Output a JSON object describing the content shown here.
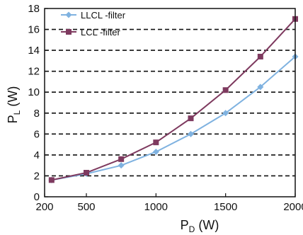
{
  "chart_data": {
    "type": "line",
    "xlabel": "P",
    "xlabel_sub": "D",
    "xlabel_unit": " (W)",
    "ylabel": "P",
    "ylabel_sub": "L",
    "ylabel_unit": " (W)",
    "xlim": [
      200,
      2000
    ],
    "ylim": [
      0,
      18
    ],
    "x_ticks": [
      200,
      500,
      1000,
      1500,
      2000
    ],
    "x_tick_labels": [
      "200",
      "500",
      "1000",
      "1500",
      "2000"
    ],
    "y_ticks": [
      0,
      2,
      4,
      6,
      8,
      10,
      12,
      14,
      16,
      18
    ],
    "y_tick_labels": [
      "0",
      "2",
      "4",
      "6",
      "8",
      "10",
      "12",
      "14",
      "16",
      "18"
    ],
    "grid": "horizontal dashed",
    "legend_position": "top-left",
    "series": [
      {
        "name": "LLCL -filter",
        "color": "#7fb2e0",
        "marker": "diamond",
        "x": [
          250,
          500,
          750,
          1000,
          1250,
          1500,
          1750,
          2000
        ],
        "y": [
          1.6,
          2.2,
          3.0,
          4.3,
          6.0,
          8.0,
          10.5,
          13.4
        ]
      },
      {
        "name": "LCL -filter",
        "color": "#7e3a5f",
        "marker": "square",
        "x": [
          250,
          500,
          750,
          1000,
          1250,
          1500,
          1750,
          2000
        ],
        "y": [
          1.6,
          2.3,
          3.6,
          5.2,
          7.5,
          10.2,
          13.4,
          17.0
        ]
      }
    ]
  }
}
